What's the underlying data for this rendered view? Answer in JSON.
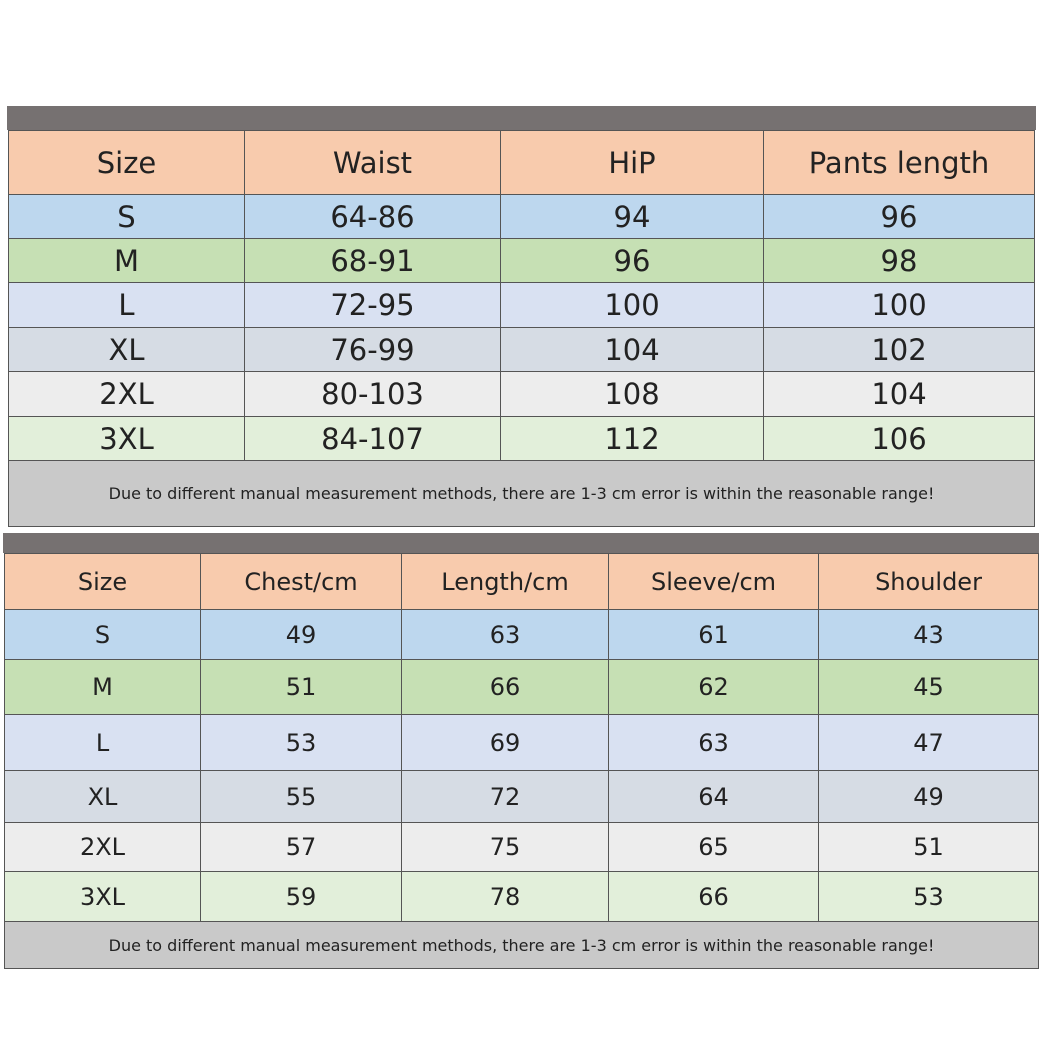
{
  "pants_table": {
    "header": [
      "Size",
      "Waist",
      "HiP",
      "Pants length"
    ],
    "rows": [
      [
        "S",
        "64-86",
        94,
        96
      ],
      [
        "M",
        "68-91",
        96,
        98
      ],
      [
        "L",
        "72-95",
        100,
        100
      ],
      [
        "XL",
        "76-99",
        104,
        102
      ],
      [
        "2XL",
        "80-103",
        108,
        104
      ],
      [
        "3XL",
        "84-107",
        112,
        106
      ]
    ],
    "note": "Due to different manual measurement methods, there are 1-3 cm error is within the reasonable range!"
  },
  "top_table": {
    "header": [
      "Size",
      "Chest/cm",
      "Length/cm",
      "Sleeve/cm",
      "Shoulder"
    ],
    "rows": [
      [
        "S",
        49,
        63,
        61,
        43
      ],
      [
        "M",
        51,
        66,
        62,
        45
      ],
      [
        "L",
        53,
        69,
        63,
        47
      ],
      [
        "XL",
        55,
        72,
        64,
        49
      ],
      [
        "2XL",
        57,
        75,
        65,
        51
      ],
      [
        "3XL",
        59,
        78,
        66,
        53
      ]
    ],
    "note": "Due to different manual measurement methods, there are 1-3 cm error is within the reasonable range!"
  }
}
